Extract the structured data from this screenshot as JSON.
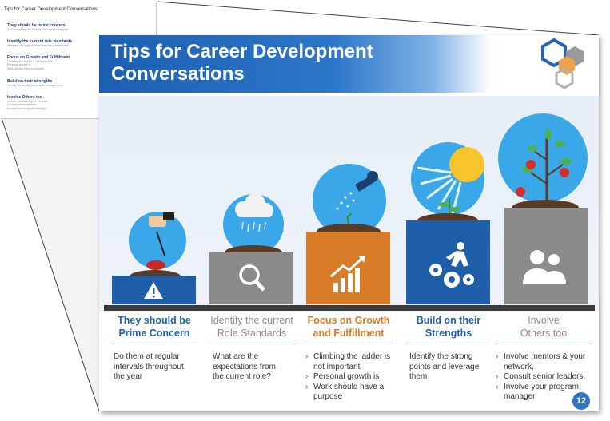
{
  "thumbnail": {
    "title": "Tips for Career Development Conversations",
    "items": [
      {
        "heading": "They should be prime concern",
        "lines": [
          "Do them at regular intervals throughout the year"
        ]
      },
      {
        "heading": "Identify the current role standards",
        "lines": [
          "What are the expectations from the current role?"
        ]
      },
      {
        "heading": "Focus on Growth and Fulfillment",
        "lines": [
          "Climbing the ladder is not important",
          "Personal growth is",
          "Work should have a purpose"
        ]
      },
      {
        "heading": "Build on their strengths",
        "lines": [
          "Identify the strong points and leverage them"
        ]
      },
      {
        "heading": "Involve Others too",
        "lines": [
          "Involve mentors & your network",
          "Consult senior leaders",
          "Involve your program manager"
        ]
      }
    ]
  },
  "slide": {
    "title_line1": "Tips for Career Development",
    "title_line2": "Conversations",
    "page_number": "12",
    "columns": [
      {
        "heading1": "They should be",
        "heading2": "Prime Concern",
        "color": "#1f5faa",
        "body": [
          "Do them at regular intervals throughout the year"
        ],
        "bullets": false
      },
      {
        "heading1": "Identify the current",
        "heading2": "Role Standards",
        "color": "#8c8c8c",
        "body": [
          "What are the expectations from the current role?"
        ],
        "bullets": false
      },
      {
        "heading1": "Focus on Growth",
        "heading2": "and Fulfillment",
        "color": "#d97c27",
        "body": [
          "Climbing the ladder is not important",
          "Personal growth is",
          "Work should have a purpose"
        ],
        "bullets": true
      },
      {
        "heading1": "Build on their",
        "heading2": "Strengths",
        "color": "#1f5faa",
        "body": [
          "Identify the strong points and leverage them"
        ],
        "bullets": false
      },
      {
        "heading1": "Involve",
        "heading2": "Others too",
        "color": "#8c8c8c",
        "body": [
          "Involve mentors & your network,",
          "Consult senior leaders,",
          "Involve your program manager"
        ],
        "bullets": true
      }
    ],
    "colors": {
      "blue": "#1f5faa",
      "gray": "#8a8a8a",
      "orange": "#d97c27",
      "sky": "#3aa7e8",
      "banner": "#2166b8"
    },
    "icons": [
      "warning-icon",
      "magnifier-icon",
      "growth-chart-icon",
      "gears-runner-icon",
      "people-icon"
    ]
  }
}
